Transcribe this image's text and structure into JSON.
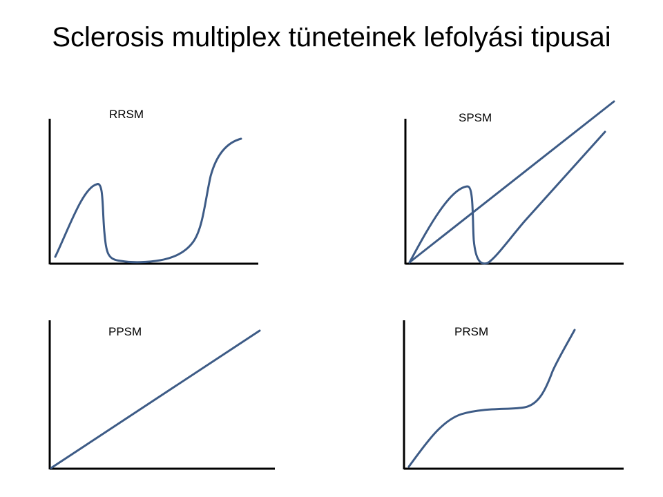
{
  "slide": {
    "title": "Sclerosis multiplex tüneteinek lefolyási tipusai"
  },
  "panels": [
    {
      "label": "RRSM"
    },
    {
      "label": "SPSM"
    },
    {
      "label": "PPSM"
    },
    {
      "label": "PRSM"
    }
  ],
  "colors": {
    "curve": "#3d5b86",
    "axis": "#000000",
    "text": "#000000"
  }
}
